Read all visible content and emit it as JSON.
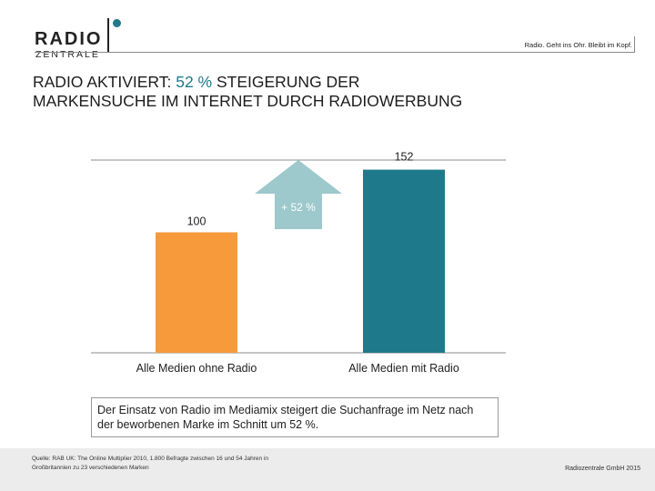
{
  "logo": {
    "word1": "RADIO",
    "word2": "ZENTRALE",
    "accent_color": "#1e7a8a"
  },
  "header": {
    "tagline": "Radio. Geht ins Ohr. Bleibt im Kopf."
  },
  "title": {
    "line1_prefix": "RADIO AKTIVIERT: ",
    "line1_accent": "52 %",
    "line1_suffix": " STEIGERUNG DER",
    "line2": "MARKENSUCHE IM INTERNET DURCH RADIOWERBUNG"
  },
  "chart_data": {
    "type": "bar",
    "title": "",
    "xlabel": "",
    "ylabel": "",
    "categories": [
      "Alle Medien ohne Radio",
      "Alle Medien mit Radio"
    ],
    "values": [
      100,
      152
    ],
    "data_labels": [
      "100",
      "152"
    ],
    "colors": [
      "#f79a3c",
      "#1e7a8a"
    ],
    "ylim": [
      0,
      160
    ],
    "gridlines": [
      160
    ],
    "grid": true,
    "annotation": {
      "label": "+ 52 %",
      "color": "#9dc8cc"
    }
  },
  "note": {
    "text": "Der Einsatz von Radio im Mediamix steigert die Suchanfrage im Netz nach der beworbenen Marke im Schnitt um 52 %."
  },
  "footer": {
    "source": "Quelle: RAB UK: The Online Multiplier 2010, 1.800 Befragte zwischen 16 und 54 Jahren in Großbritannien zu 23 verschiedenen Marken",
    "copyright": "Radiozentrale GmbH 2015"
  }
}
